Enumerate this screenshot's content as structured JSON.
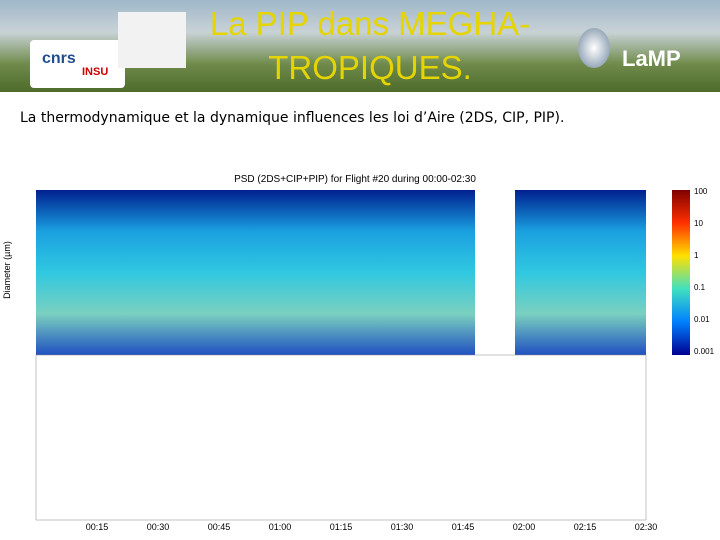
{
  "header": {
    "title": "La PIP dans MEGHA-TROPIQUES.",
    "logos": [
      "cnrs",
      "INSU",
      "LaMP"
    ]
  },
  "subtitle": "La thermodynamique et la dynamique influences les loi d’Aire (2DS, CIP, PIP).",
  "figure": {
    "title": "PSD (2DS+CIP+PIP) for Flight #20 during 00:00-02:30",
    "y_label": "Diameter (µm)",
    "x_ticks": [
      "00:15",
      "00:30",
      "00:45",
      "01:00",
      "01:15",
      "01:30",
      "01:45",
      "02:00",
      "02:15",
      "02:30"
    ],
    "colorbar_ticks": [
      "100",
      "10",
      "1",
      "0.1",
      "0.01",
      "0.001"
    ]
  }
}
